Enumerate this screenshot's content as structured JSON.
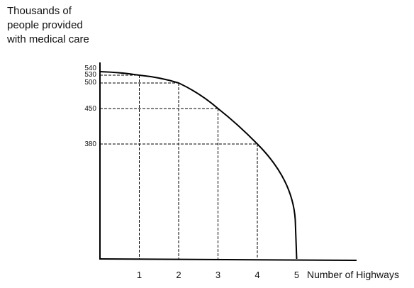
{
  "chart_data": {
    "type": "line",
    "title": "",
    "ylabel_lines": [
      "Thousands of",
      "people provided",
      "with medical care"
    ],
    "xlabel": "Number of Highways",
    "x": [
      0,
      1,
      2,
      3,
      4,
      5
    ],
    "y": [
      540,
      530,
      500,
      450,
      380,
      0
    ],
    "x_ticks": [
      "1",
      "2",
      "3",
      "4",
      "5"
    ],
    "y_ticks": [
      "540",
      "530",
      "500",
      "450",
      "380"
    ],
    "xlim": [
      0,
      5.4
    ],
    "ylim": [
      0,
      540
    ],
    "grid": false,
    "dashed_guides": true,
    "colors": {
      "curve": "#000000",
      "axis": "#000000",
      "guides": "#000000"
    }
  }
}
